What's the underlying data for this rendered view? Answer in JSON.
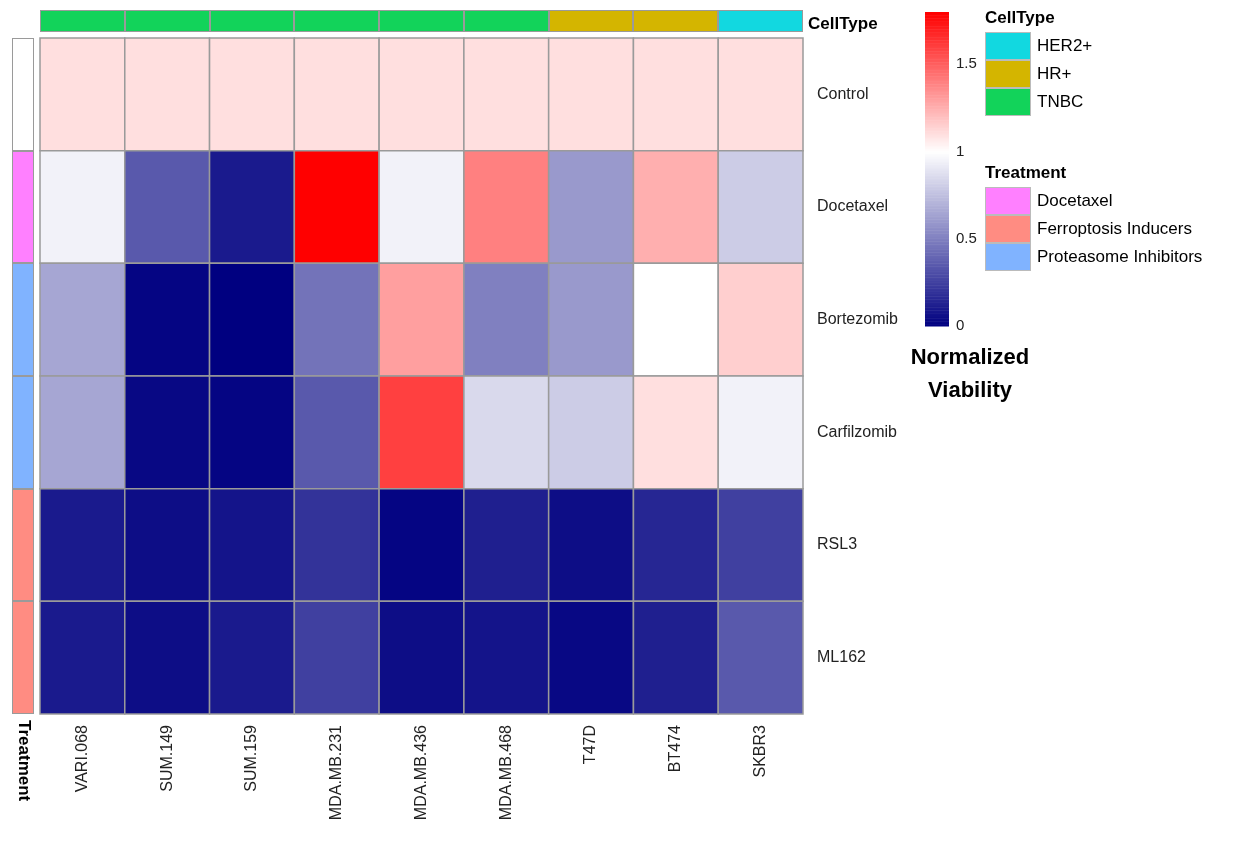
{
  "chart_data": [
    {
      "type": "heatmap",
      "categories": [
        "VARI.068",
        "SUM.149",
        "SUM.159",
        "MDA.MB.231",
        "MDA.MB.436",
        "MDA.MB.468",
        "T47D",
        "BT474",
        "SKBR3"
      ],
      "y_categories": [
        "Control",
        "Docetaxel",
        "Bortezomib",
        "Carfilzomib",
        "RSL3",
        "ML162"
      ],
      "cells": [
        [
          1.1,
          1.1,
          1.1,
          1.1,
          1.1,
          1.1,
          1.1,
          1.1,
          1.1
        ],
        [
          0.95,
          0.35,
          0.1,
          1.8,
          0.95,
          1.4,
          0.6,
          1.25,
          0.8
        ],
        [
          0.65,
          0.02,
          0.0,
          0.45,
          1.3,
          0.5,
          0.6,
          1.0,
          1.15
        ],
        [
          0.65,
          0.03,
          0.02,
          0.35,
          1.6,
          0.85,
          0.8,
          1.1,
          0.95
        ],
        [
          0.1,
          0.05,
          0.08,
          0.2,
          0.02,
          0.12,
          0.05,
          0.15,
          0.25
        ],
        [
          0.1,
          0.05,
          0.1,
          0.25,
          0.05,
          0.08,
          0.03,
          0.12,
          0.35
        ]
      ],
      "colors": [
        "#000080",
        "#ffffff",
        "#ff0000"
      ],
      "clim": [
        0,
        1.8
      ],
      "cticks": [
        0,
        0.5,
        1,
        1.5
      ],
      "clabel": "Normalized Viability"
    },
    {
      "type": "other",
      "title": "CellType",
      "legend": "right",
      "colors": [
        "#12d35a",
        "#12d35a",
        "#12d35a",
        "#12d35a",
        "#12d35a",
        "#12d35a",
        "#d4b500",
        "#d4b500",
        "#12d8e0"
      ],
      "series": [
        {
          "name": "HER2+",
          "color": "#12d8e0"
        },
        {
          "name": "HR+",
          "color": "#d4b500"
        },
        {
          "name": "TNBC",
          "color": "#12d35a"
        }
      ]
    },
    {
      "type": "other",
      "title": "Treatment",
      "legend": "right",
      "colors": [
        null,
        "#ff80ff",
        "#80b3ff",
        "#80b3ff",
        "#ff8c82",
        "#ff8c82"
      ],
      "series": [
        {
          "name": "Docetaxel",
          "color": "#ff80ff"
        },
        {
          "name": "Ferroptosis Inducers",
          "color": "#ff8c82"
        },
        {
          "name": "Proteasome Inhibitors",
          "color": "#80b3ff"
        }
      ]
    }
  ]
}
